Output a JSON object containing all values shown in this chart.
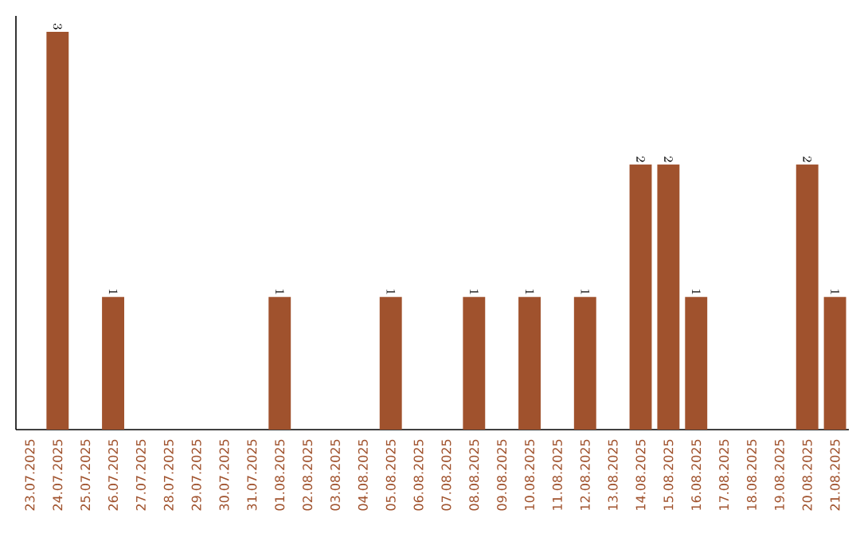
{
  "chart_data": {
    "type": "bar",
    "categories": [
      "23.07.2025",
      "24.07.2025",
      "25.07.2025",
      "26.07.2025",
      "27.07.2025",
      "28.07.2025",
      "29.07.2025",
      "30.07.2025",
      "31.07.2025",
      "01.08.2025",
      "02.08.2025",
      "03.08.2025",
      "04.08.2025",
      "05.08.2025",
      "06.08.2025",
      "07.08.2025",
      "08.08.2025",
      "09.08.2025",
      "10.08.2025",
      "11.08.2025",
      "12.08.2025",
      "13.08.2025",
      "14.08.2025",
      "15.08.2025",
      "16.08.2025",
      "17.08.2025",
      "18.08.2025",
      "19.08.2025",
      "20.08.2025",
      "21.08.2025"
    ],
    "values": [
      null,
      3,
      null,
      1,
      null,
      null,
      null,
      null,
      null,
      1,
      null,
      null,
      null,
      1,
      null,
      null,
      1,
      null,
      1,
      null,
      1,
      null,
      2,
      2,
      1,
      null,
      null,
      null,
      2,
      1
    ],
    "color": "#a0522d",
    "data_labels": true,
    "tick_labels": "x"
  }
}
